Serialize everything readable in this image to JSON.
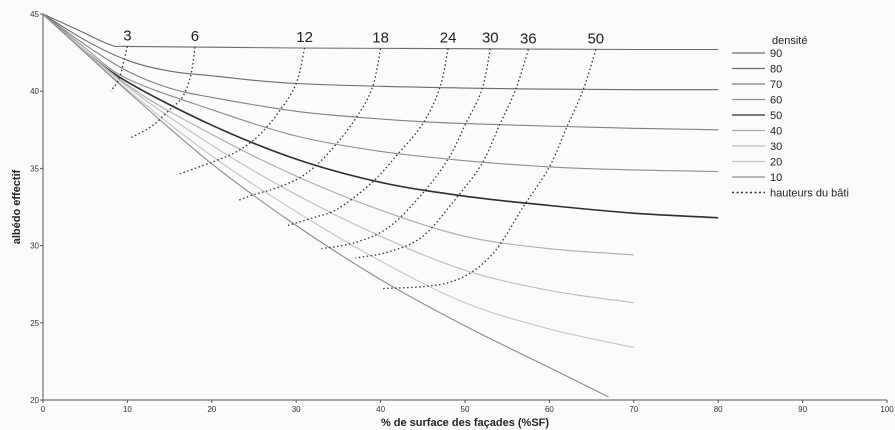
{
  "chart_data": {
    "type": "line",
    "xlabel": "% de surface des façades (%SF)",
    "ylabel": "albédo effectif",
    "xlim": [
      0,
      100
    ],
    "ylim": [
      20,
      45
    ],
    "x_ticks": [
      0,
      10,
      20,
      30,
      40,
      50,
      60,
      70,
      80,
      90,
      100
    ],
    "y_ticks": [
      20,
      25,
      30,
      35,
      40,
      45
    ],
    "grid": false,
    "legend_title": "densité",
    "legend_position": "right",
    "legend_entries": [
      {
        "label": "90",
        "color": "#6a6a6a",
        "dashed": false
      },
      {
        "label": "80",
        "color": "#6a6a6a",
        "dashed": false
      },
      {
        "label": "70",
        "color": "#808080",
        "dashed": false
      },
      {
        "label": "60",
        "color": "#8e8e8e",
        "dashed": false
      },
      {
        "label": "50",
        "color": "#2e2e2e",
        "dashed": false
      },
      {
        "label": "40",
        "color": "#ababab",
        "dashed": false
      },
      {
        "label": "30",
        "color": "#bdbdbd",
        "dashed": false
      },
      {
        "label": "20",
        "color": "#c4c4c4",
        "dashed": false
      },
      {
        "label": "10",
        "color": "#8a8a8a",
        "dashed": false
      },
      {
        "label": "hauteurs du bâti",
        "color": "#333333",
        "dashed": true
      }
    ],
    "density_series": [
      {
        "density": "90",
        "color": "#6a6a6a",
        "points": [
          [
            0,
            45
          ],
          [
            4,
            44
          ],
          [
            8,
            43
          ],
          [
            10,
            42.9
          ],
          [
            20,
            42.85
          ],
          [
            30,
            42.8
          ],
          [
            50,
            42.75
          ],
          [
            70,
            42.7
          ],
          [
            80,
            42.7
          ]
        ]
      },
      {
        "density": "80",
        "color": "#6a6a6a",
        "points": [
          [
            0,
            45
          ],
          [
            5,
            43.3
          ],
          [
            10,
            42
          ],
          [
            15,
            41.3
          ],
          [
            20,
            41
          ],
          [
            30,
            40.5
          ],
          [
            50,
            40.2
          ],
          [
            70,
            40.1
          ],
          [
            80,
            40.1
          ]
        ]
      },
      {
        "density": "70",
        "color": "#808080",
        "points": [
          [
            0,
            45
          ],
          [
            5,
            43
          ],
          [
            10,
            41.3
          ],
          [
            15,
            40.2
          ],
          [
            20,
            39.6
          ],
          [
            30,
            38.7
          ],
          [
            40,
            38.2
          ],
          [
            50,
            37.9
          ],
          [
            70,
            37.6
          ],
          [
            80,
            37.5
          ]
        ]
      },
      {
        "density": "60",
        "color": "#8e8e8e",
        "points": [
          [
            0,
            45
          ],
          [
            5,
            42.8
          ],
          [
            10,
            40.8
          ],
          [
            20,
            38.8
          ],
          [
            30,
            37.1
          ],
          [
            40,
            36.1
          ],
          [
            50,
            35.5
          ],
          [
            60,
            35.1
          ],
          [
            70,
            34.9
          ],
          [
            80,
            34.8
          ]
        ]
      },
      {
        "density": "50",
        "color": "#2e2e2e",
        "points": [
          [
            0,
            45
          ],
          [
            5,
            42.6
          ],
          [
            10,
            40.6
          ],
          [
            20,
            37.8
          ],
          [
            30,
            35.6
          ],
          [
            40,
            34.1
          ],
          [
            50,
            33.2
          ],
          [
            60,
            32.6
          ],
          [
            70,
            32.1
          ],
          [
            80,
            31.8
          ]
        ]
      },
      {
        "density": "40",
        "color": "#ababab",
        "points": [
          [
            0,
            45
          ],
          [
            10,
            40.4
          ],
          [
            20,
            37.2
          ],
          [
            30,
            34.5
          ],
          [
            40,
            32.3
          ],
          [
            50,
            30.6
          ],
          [
            60,
            29.8
          ],
          [
            70,
            29.4
          ]
        ]
      },
      {
        "density": "30",
        "color": "#bdbdbd",
        "points": [
          [
            0,
            45
          ],
          [
            10,
            40.3
          ],
          [
            20,
            36.5
          ],
          [
            30,
            33.3
          ],
          [
            40,
            30.6
          ],
          [
            50,
            28.4
          ],
          [
            60,
            27.1
          ],
          [
            70,
            26.3
          ]
        ]
      },
      {
        "density": "20",
        "color": "#c4c4c4",
        "points": [
          [
            0,
            45
          ],
          [
            10,
            40.1
          ],
          [
            20,
            35.8
          ],
          [
            30,
            32.2
          ],
          [
            40,
            29
          ],
          [
            50,
            26.3
          ],
          [
            60,
            24.6
          ],
          [
            70,
            23.4
          ]
        ]
      },
      {
        "density": "10",
        "color": "#8a8a8a",
        "points": [
          [
            0,
            45
          ],
          [
            10,
            40
          ],
          [
            20,
            35.3
          ],
          [
            30,
            31.3
          ],
          [
            40,
            27.8
          ],
          [
            50,
            24.8
          ],
          [
            60,
            22.1
          ],
          [
            67,
            20.2
          ]
        ]
      }
    ],
    "height_series": [
      {
        "label": "3",
        "points": [
          [
            10,
            42.9
          ],
          [
            9.6,
            42
          ],
          [
            9.3,
            41.3
          ],
          [
            9,
            40.8
          ],
          [
            8.6,
            40.4
          ],
          [
            8.3,
            40.2
          ],
          [
            8,
            40
          ]
        ]
      },
      {
        "label": "6",
        "points": [
          [
            18,
            42.85
          ],
          [
            17.5,
            41
          ],
          [
            16.5,
            39.6
          ],
          [
            15,
            38.8
          ],
          [
            13.5,
            38
          ],
          [
            12.5,
            37.6
          ],
          [
            11.5,
            37.3
          ],
          [
            10.5,
            37
          ]
        ]
      },
      {
        "label": "12",
        "points": [
          [
            31,
            42.8
          ],
          [
            30,
            40.5
          ],
          [
            28,
            38.7
          ],
          [
            25.5,
            37.1
          ],
          [
            23,
            36.1
          ],
          [
            20.5,
            35.5
          ],
          [
            18,
            35
          ],
          [
            16,
            34.6
          ]
        ]
      },
      {
        "label": "18",
        "points": [
          [
            40,
            42.75
          ],
          [
            39,
            40.2
          ],
          [
            37,
            38.2
          ],
          [
            34,
            36.1
          ],
          [
            31,
            34.6
          ],
          [
            28,
            33.8
          ],
          [
            25,
            33.3
          ],
          [
            23,
            32.9
          ]
        ]
      },
      {
        "label": "24",
        "points": [
          [
            48,
            42.75
          ],
          [
            47,
            40.2
          ],
          [
            45,
            37.9
          ],
          [
            42,
            35.9
          ],
          [
            39,
            34.1
          ],
          [
            35,
            32.4
          ],
          [
            32,
            31.8
          ],
          [
            29,
            31.3
          ]
        ]
      },
      {
        "label": "30",
        "points": [
          [
            53,
            42.75
          ],
          [
            52,
            40.1
          ],
          [
            50,
            37.8
          ],
          [
            48,
            35.6
          ],
          [
            45,
            33.4
          ],
          [
            41,
            31.2
          ],
          [
            37,
            30.2
          ],
          [
            33,
            29.8
          ]
        ]
      },
      {
        "label": "36",
        "points": [
          [
            57.5,
            42.7
          ],
          [
            56,
            40.1
          ],
          [
            54,
            37.7
          ],
          [
            52,
            35.3
          ],
          [
            49,
            33.1
          ],
          [
            45,
            30.6
          ],
          [
            41,
            29.6
          ],
          [
            37,
            29.2
          ]
        ]
      },
      {
        "label": "50",
        "points": [
          [
            65.5,
            42.7
          ],
          [
            64,
            40.1
          ],
          [
            62,
            37.6
          ],
          [
            60,
            35.1
          ],
          [
            57,
            32.6
          ],
          [
            53,
            29.3
          ],
          [
            48,
            27.6
          ],
          [
            40,
            27.2
          ]
        ]
      }
    ]
  }
}
